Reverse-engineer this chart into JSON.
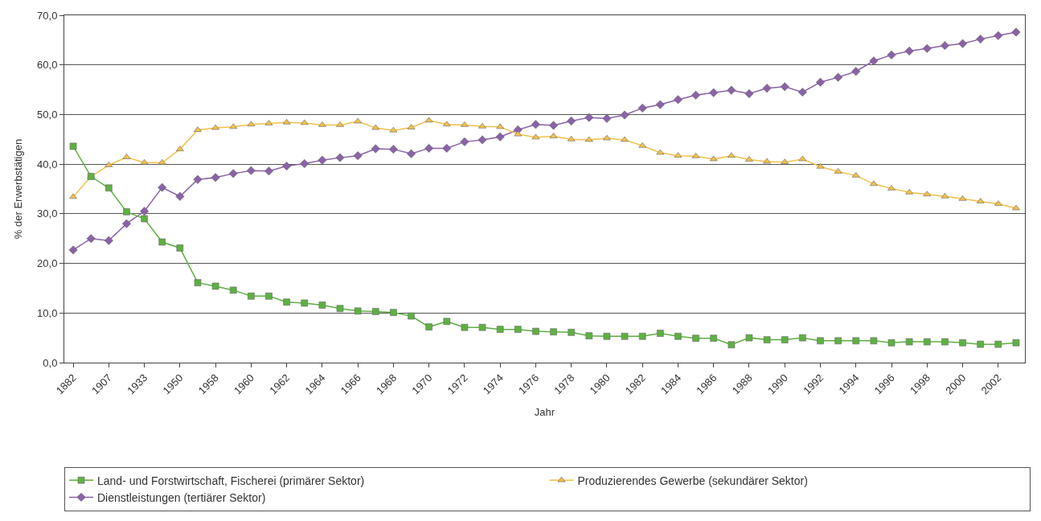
{
  "chart_data": {
    "type": "line",
    "xlabel": "Jahr",
    "ylabel": "% der Erwerbstätigen",
    "categories": [
      "1882",
      null,
      "1907",
      null,
      "1933",
      null,
      "1950",
      null,
      "1958",
      null,
      "1960",
      null,
      "1962",
      null,
      "1964",
      null,
      "1966",
      null,
      "1968",
      null,
      "1970",
      null,
      "1972",
      null,
      "1974",
      null,
      "1976",
      null,
      "1978",
      null,
      "1980",
      null,
      "1982",
      null,
      "1984",
      null,
      "1986",
      null,
      "1988",
      null,
      "1990",
      null,
      "1992",
      null,
      "1994",
      null,
      "1996",
      null,
      "1998",
      null,
      "2000",
      null,
      "2002",
      null
    ],
    "series": [
      {
        "name": "Land- und Forstwirtschaft, Fischerei (primärer Sektor)",
        "color": "#5fb043",
        "marker": "square",
        "values": [
          43.6,
          37.5,
          35.2,
          30.4,
          29.0,
          24.3,
          23.1,
          16.1,
          15.4,
          14.6,
          13.4,
          13.4,
          12.2,
          12.0,
          11.6,
          10.9,
          10.4,
          10.3,
          10.1,
          9.4,
          7.2,
          8.3,
          7.1,
          7.1,
          6.7,
          6.7,
          6.3,
          6.2,
          6.1,
          5.4,
          5.3,
          5.3,
          5.3,
          5.9,
          5.3,
          4.9,
          4.9,
          3.6,
          5.0,
          4.6,
          4.6,
          5.0,
          4.4,
          4.4,
          4.4,
          4.4,
          4.0,
          4.2,
          4.2,
          4.2,
          4.0,
          3.7,
          3.7,
          4.0
        ]
      },
      {
        "name": "Produzierendes Gewerbe (sekundärer Sektor)",
        "color": "#f2c04c",
        "marker": "triangle",
        "values": [
          33.4,
          37.5,
          39.8,
          41.4,
          40.3,
          40.3,
          43.0,
          46.9,
          47.3,
          47.5,
          48.0,
          48.2,
          48.4,
          48.3,
          47.9,
          47.9,
          48.6,
          47.3,
          46.8,
          47.4,
          48.8,
          48.0,
          47.9,
          47.6,
          47.5,
          46.0,
          45.4,
          45.6,
          45.0,
          44.9,
          45.2,
          44.9,
          43.7,
          42.3,
          41.7,
          41.6,
          41.0,
          41.7,
          40.9,
          40.5,
          40.4,
          41.0,
          39.5,
          38.5,
          37.7,
          36.0,
          35.1,
          34.3,
          33.9,
          33.5,
          33.0,
          32.5,
          32.0,
          31.1
        ]
      },
      {
        "name": "Dienstleistungen (tertiärer Sektor)",
        "color": "#8a62a8",
        "marker": "diamond",
        "values": [
          22.7,
          25.0,
          24.6,
          28.0,
          30.5,
          35.3,
          33.5,
          36.9,
          37.3,
          38.1,
          38.7,
          38.6,
          39.6,
          40.1,
          40.8,
          41.3,
          41.7,
          43.1,
          43.0,
          42.1,
          43.2,
          43.2,
          44.5,
          44.9,
          45.5,
          46.9,
          48.0,
          47.8,
          48.7,
          49.4,
          49.2,
          49.9,
          51.3,
          52.0,
          53.0,
          53.9,
          54.4,
          54.9,
          54.2,
          55.3,
          55.6,
          54.5,
          56.5,
          57.5,
          58.7,
          60.8,
          62.0,
          62.8,
          63.3,
          63.9,
          64.3,
          65.2,
          65.9,
          66.6
        ]
      }
    ],
    "ylim": [
      0,
      70
    ],
    "yticks": [
      {
        "value": 0,
        "label": "0,0"
      },
      {
        "value": 10,
        "label": "10,0"
      },
      {
        "value": 20,
        "label": "20,0"
      },
      {
        "value": 30,
        "label": "30,0"
      },
      {
        "value": 40,
        "label": "40,0"
      },
      {
        "value": 50,
        "label": "50,0"
      },
      {
        "value": 60,
        "label": "60,0"
      },
      {
        "value": 70,
        "label": "70,0"
      }
    ],
    "grid": "y",
    "legend": "bottom",
    "line_style": "solid"
  }
}
